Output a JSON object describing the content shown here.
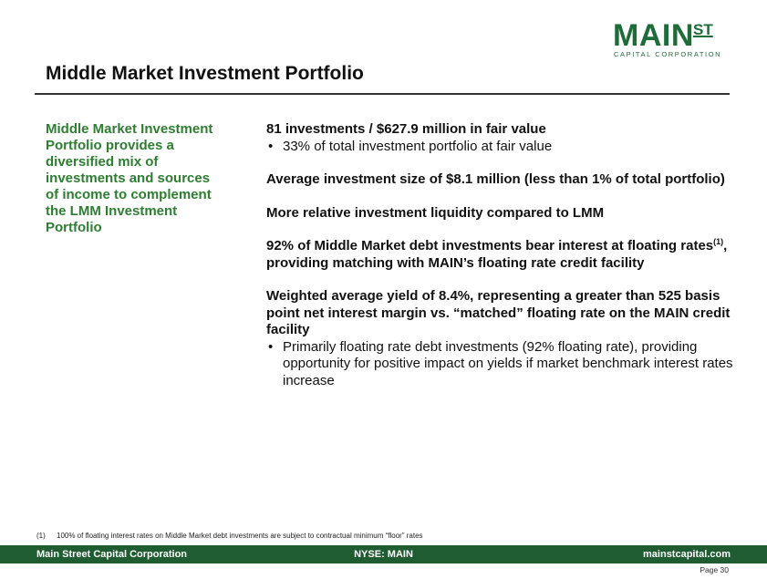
{
  "logo": {
    "main": "MAIN",
    "st": "ST",
    "sub": "CAPITAL CORPORATION"
  },
  "title": "Middle Market Investment Portfolio",
  "sidebar": {
    "text": "Middle Market Investment Portfolio provides a diversified mix of investments and sources of income to complement the LMM Investment Portfolio"
  },
  "content": {
    "p1": "81 investments / $627.9 million in fair value",
    "p1_bullet": "33% of total investment portfolio at fair value",
    "p2": "Average investment size of $8.1 million (less than 1% of total portfolio)",
    "p3": "More relative investment liquidity compared to LMM",
    "p4_pre": "92% of Middle Market debt investments bear interest at floating rates",
    "p4_sup": "(1)",
    "p4_post": ", providing matching with MAIN’s floating rate credit facility",
    "p5": "Weighted average yield of 8.4%, representing a greater than 525 basis point net interest margin vs. “matched” floating rate on the MAIN credit facility",
    "p5_bullet": "Primarily floating rate debt investments (92% floating rate), providing opportunity for positive impact on yields if market benchmark interest rates increase",
    "bullet_char": "•"
  },
  "footnote": {
    "num": "(1)",
    "text": "100% of floating interest rates on Middle Market debt investments are subject to contractual minimum “floor” rates"
  },
  "footer": {
    "left": "Main Street Capital Corporation",
    "center": "NYSE: MAIN",
    "right": "mainstcapital.com"
  },
  "page": "Page  30",
  "colors": {
    "brand_green": "#1f6b3a",
    "footer_green": "#1f5c31",
    "sidebar_green": "#2e7d32"
  }
}
